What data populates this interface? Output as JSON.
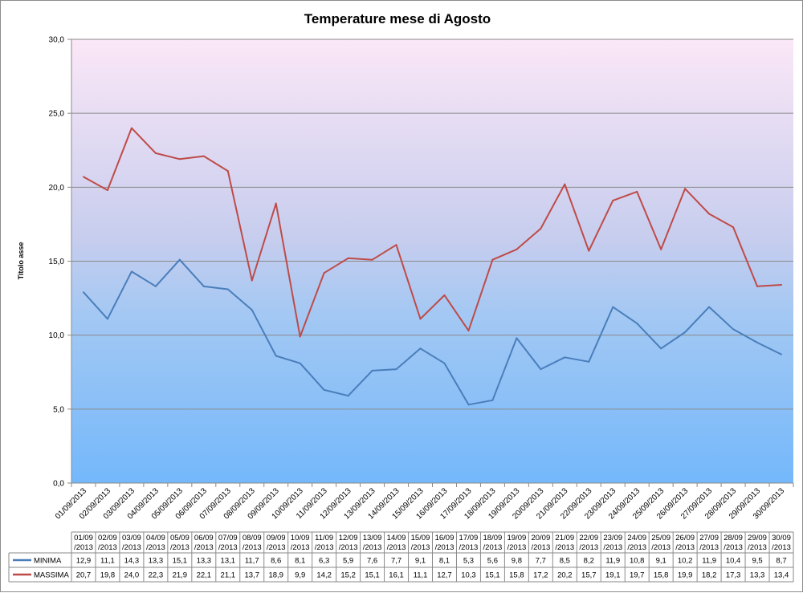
{
  "chart_data": {
    "type": "line",
    "title": "Temperature mese di Agosto",
    "xlabel": "",
    "ylabel": "Titolo asse",
    "ylim": [
      0,
      30
    ],
    "yticks": [
      "0,0",
      "5,0",
      "10,0",
      "15,0",
      "20,0",
      "25,0",
      "30,0"
    ],
    "ytick_values": [
      0,
      5,
      10,
      15,
      20,
      25,
      30
    ],
    "grid": true,
    "legend": "bottom-data-table",
    "categories": [
      "01/09/2013",
      "02/09/2013",
      "03/09/2013",
      "04/09/2013",
      "05/09/2013",
      "06/09/2013",
      "07/09/2013",
      "08/09/2013",
      "09/09/2013",
      "10/09/2013",
      "11/09/2013",
      "12/09/2013",
      "13/09/2013",
      "14/09/2013",
      "15/09/2013",
      "16/09/2013",
      "17/09/2013",
      "18/09/2013",
      "19/09/2013",
      "20/09/2013",
      "21/09/2013",
      "22/09/2013",
      "23/09/2013",
      "24/09/2013",
      "25/09/2013",
      "26/09/2013",
      "27/09/2013",
      "28/09/2013",
      "29/09/2013",
      "30/09/2013"
    ],
    "table_header_top": [
      "01/09",
      "02/09",
      "03/09",
      "04/09",
      "05/09",
      "06/09",
      "07/09",
      "08/09",
      "09/09",
      "10/09",
      "11/09",
      "12/09",
      "13/09",
      "14/09",
      "15/09",
      "16/09",
      "17/09",
      "18/09",
      "19/09",
      "20/09",
      "21/09",
      "22/09",
      "23/09",
      "24/09",
      "25/09",
      "26/09",
      "27/09",
      "28/09",
      "29/09",
      "30/09"
    ],
    "table_header_bottom": "/2013",
    "series": [
      {
        "name": "MINIMA",
        "color": "#4a7ebb",
        "values": [
          12.9,
          11.1,
          14.3,
          13.3,
          15.1,
          13.3,
          13.1,
          11.7,
          8.6,
          8.1,
          6.3,
          5.9,
          7.6,
          7.7,
          9.1,
          8.1,
          5.3,
          5.6,
          9.8,
          7.7,
          8.5,
          8.2,
          11.9,
          10.8,
          9.1,
          10.2,
          11.9,
          10.4,
          9.5,
          8.7
        ],
        "labels": [
          "12,9",
          "11,1",
          "14,3",
          "13,3",
          "15,1",
          "13,3",
          "13,1",
          "11,7",
          "8,6",
          "8,1",
          "6,3",
          "5,9",
          "7,6",
          "7,7",
          "9,1",
          "8,1",
          "5,3",
          "5,6",
          "9,8",
          "7,7",
          "8,5",
          "8,2",
          "11,9",
          "10,8",
          "9,1",
          "10,2",
          "11,9",
          "10,4",
          "9,5",
          "8,7"
        ]
      },
      {
        "name": "MASSIMA",
        "color": "#be4b48",
        "values": [
          20.7,
          19.8,
          24.0,
          22.3,
          21.9,
          22.1,
          21.1,
          13.7,
          18.9,
          9.9,
          14.2,
          15.2,
          15.1,
          16.1,
          11.1,
          12.7,
          10.3,
          15.1,
          15.8,
          17.2,
          20.2,
          15.7,
          19.1,
          19.7,
          15.8,
          19.9,
          18.2,
          17.3,
          13.3,
          13.4
        ],
        "labels": [
          "20,7",
          "19,8",
          "24,0",
          "22,3",
          "21,9",
          "22,1",
          "21,1",
          "13,7",
          "18,9",
          "9,9",
          "14,2",
          "15,2",
          "15,1",
          "16,1",
          "11,1",
          "12,7",
          "10,3",
          "15,1",
          "15,8",
          "17,2",
          "20,2",
          "15,7",
          "19,1",
          "19,7",
          "15,8",
          "19,9",
          "18,2",
          "17,3",
          "13,3",
          "13,4"
        ]
      }
    ]
  }
}
